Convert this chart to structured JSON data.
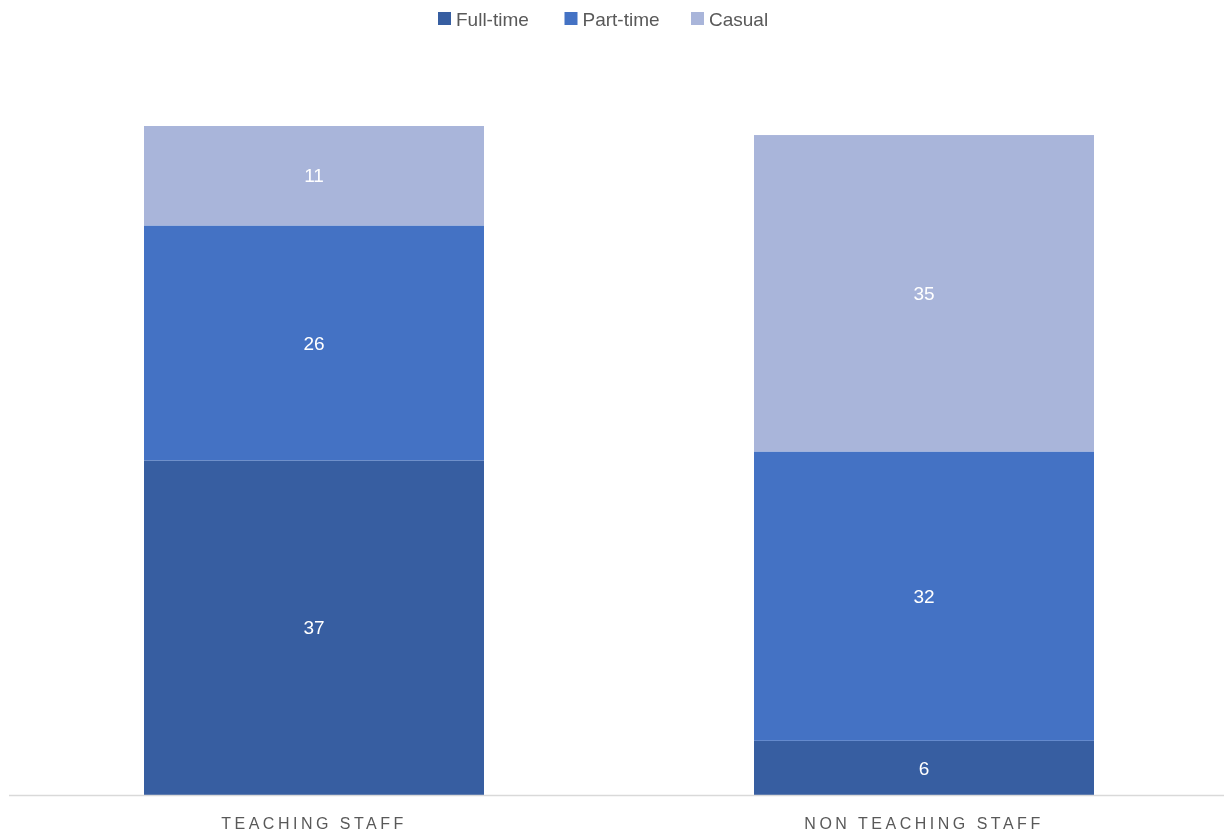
{
  "chart_data": {
    "type": "bar",
    "stacked": true,
    "categories": [
      "TEACHING STAFF",
      "NON TEACHING STAFF"
    ],
    "series": [
      {
        "name": "Full-time",
        "color": "#375ea1",
        "values": [
          37,
          6
        ]
      },
      {
        "name": "Part-time",
        "color": "#4472c4",
        "values": [
          26,
          32
        ]
      },
      {
        "name": "Casual",
        "color": "#a9b5da",
        "values": [
          11,
          35
        ]
      }
    ],
    "data_labels": true,
    "legend": "top"
  }
}
